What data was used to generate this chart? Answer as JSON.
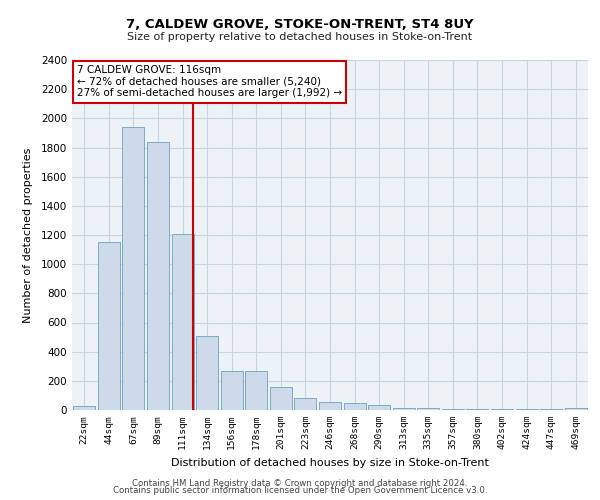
{
  "title": "7, CALDEW GROVE, STOKE-ON-TRENT, ST4 8UY",
  "subtitle": "Size of property relative to detached houses in Stoke-on-Trent",
  "xlabel": "Distribution of detached houses by size in Stoke-on-Trent",
  "ylabel": "Number of detached properties",
  "categories": [
    "22sqm",
    "44sqm",
    "67sqm",
    "89sqm",
    "111sqm",
    "134sqm",
    "156sqm",
    "178sqm",
    "201sqm",
    "223sqm",
    "246sqm",
    "268sqm",
    "290sqm",
    "313sqm",
    "335sqm",
    "357sqm",
    "380sqm",
    "402sqm",
    "424sqm",
    "447sqm",
    "469sqm"
  ],
  "values": [
    25,
    1150,
    1940,
    1840,
    1210,
    510,
    265,
    265,
    155,
    80,
    55,
    45,
    35,
    15,
    15,
    10,
    10,
    10,
    5,
    5,
    15
  ],
  "bar_color": "#ccdaea",
  "bar_edge_color": "#7aaac8",
  "marker_color": "#cc0000",
  "annotation_title": "7 CALDEW GROVE: 116sqm",
  "annotation_line1": "← 72% of detached houses are smaller (5,240)",
  "annotation_line2": "27% of semi-detached houses are larger (1,992) →",
  "annotation_box_color": "#cc0000",
  "grid_color": "#c8d4de",
  "background_color": "#edf2f7",
  "ylim": [
    0,
    2400
  ],
  "yticks": [
    0,
    200,
    400,
    600,
    800,
    1000,
    1200,
    1400,
    1600,
    1800,
    2000,
    2200,
    2400
  ],
  "footer1": "Contains HM Land Registry data © Crown copyright and database right 2024.",
  "footer2": "Contains public sector information licensed under the Open Government Licence v3.0."
}
